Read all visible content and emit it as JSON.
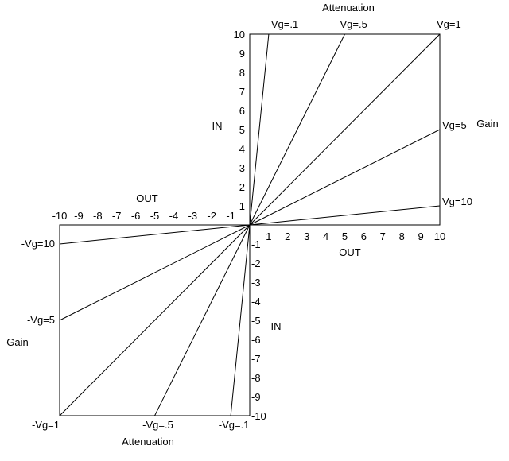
{
  "chart_data": {
    "type": "line",
    "x_ticks": [
      -10,
      -9,
      -8,
      -7,
      -6,
      -5,
      -4,
      -3,
      -2,
      -1,
      1,
      2,
      3,
      4,
      5,
      6,
      7,
      8,
      9,
      10
    ],
    "y_ticks": [
      -10,
      -9,
      -8,
      -7,
      -6,
      -5,
      -4,
      -3,
      -2,
      -1,
      1,
      2,
      3,
      4,
      5,
      6,
      7,
      8,
      9,
      10
    ],
    "xlim": [
      -10,
      10
    ],
    "ylim": [
      -10,
      10
    ],
    "axis_labels": {
      "in_top": "IN",
      "in_bottom": "IN",
      "out_top": "OUT",
      "out_bottom": "OUT",
      "gain_right": "Gain",
      "gain_left": "Gain",
      "attenuation_top": "Attenuation",
      "attenuation_bottom": "Attenuation"
    },
    "series": [
      {
        "name": "Vg=.1",
        "x": [
          0,
          1
        ],
        "y": [
          0,
          10
        ]
      },
      {
        "name": "Vg=.5",
        "x": [
          0,
          5
        ],
        "y": [
          0,
          10
        ]
      },
      {
        "name": "Vg=1",
        "x": [
          0,
          10
        ],
        "y": [
          0,
          10
        ]
      },
      {
        "name": "Vg=5",
        "x": [
          0,
          10
        ],
        "y": [
          0,
          5
        ]
      },
      {
        "name": "Vg=10",
        "x": [
          0,
          10
        ],
        "y": [
          0,
          1
        ]
      },
      {
        "name": "-Vg=10",
        "x": [
          0,
          -10
        ],
        "y": [
          0,
          -1
        ]
      },
      {
        "name": "-Vg=5",
        "x": [
          0,
          -10
        ],
        "y": [
          0,
          -5
        ]
      },
      {
        "name": "-Vg=1",
        "x": [
          0,
          -10
        ],
        "y": [
          0,
          -10
        ]
      },
      {
        "name": "-Vg=.5",
        "x": [
          0,
          -5
        ],
        "y": [
          0,
          -10
        ]
      },
      {
        "name": "-Vg=.1",
        "x": [
          0,
          -1
        ],
        "y": [
          0,
          -10
        ]
      }
    ]
  }
}
